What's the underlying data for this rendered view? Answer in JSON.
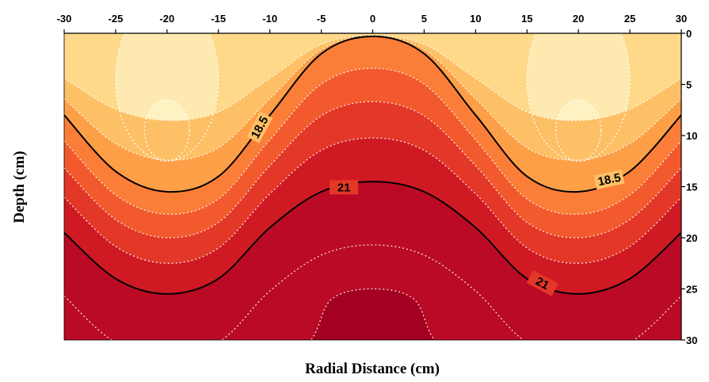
{
  "chart_data": {
    "type": "contour",
    "xlabel": "Radial Distance (cm)",
    "ylabel": "Depth (cm)",
    "xlim": [
      -30,
      30
    ],
    "ylim": [
      0,
      30
    ],
    "y_inverted": true,
    "x_axis_position": "top",
    "y_axis_position": "right",
    "x_ticks": [
      "-30",
      "-25",
      "-20",
      "-15",
      "-10",
      "-5",
      "0",
      "5",
      "10",
      "15",
      "20",
      "25",
      "30"
    ],
    "y_ticks": [
      "0",
      "5",
      "10",
      "15",
      "20",
      "25",
      "30"
    ],
    "labeled_contours": [
      {
        "label": "18.5",
        "points": [
          [
            -30,
            8
          ],
          [
            -25,
            13.5
          ],
          [
            -20,
            15.5
          ],
          [
            -15,
            14
          ],
          [
            -10,
            8
          ],
          [
            -5,
            2
          ],
          [
            0,
            0.3
          ],
          [
            5,
            2
          ],
          [
            10,
            8
          ],
          [
            15,
            14
          ],
          [
            20,
            15.5
          ],
          [
            25,
            13.5
          ],
          [
            30,
            8
          ]
        ]
      },
      {
        "label": "21",
        "points": [
          [
            -30,
            19.5
          ],
          [
            -25,
            24
          ],
          [
            -20,
            25.5
          ],
          [
            -15,
            24
          ],
          [
            -10,
            19
          ],
          [
            -5,
            15.5
          ],
          [
            0,
            14.5
          ],
          [
            5,
            15.5
          ],
          [
            10,
            19
          ],
          [
            15,
            24
          ],
          [
            20,
            25.5
          ],
          [
            25,
            24
          ],
          [
            30,
            19.5
          ]
        ]
      }
    ],
    "color_scale": [
      "#fff2c2",
      "#feeab0",
      "#fed98a",
      "#fec066",
      "#fd9f47",
      "#fb7e38",
      "#f25a2e",
      "#e33728",
      "#cf1a24",
      "#bb0a25",
      "#a30022"
    ],
    "contour_line_color": "#000000",
    "intermediate_contour_style": "white dotted",
    "grid": false
  }
}
